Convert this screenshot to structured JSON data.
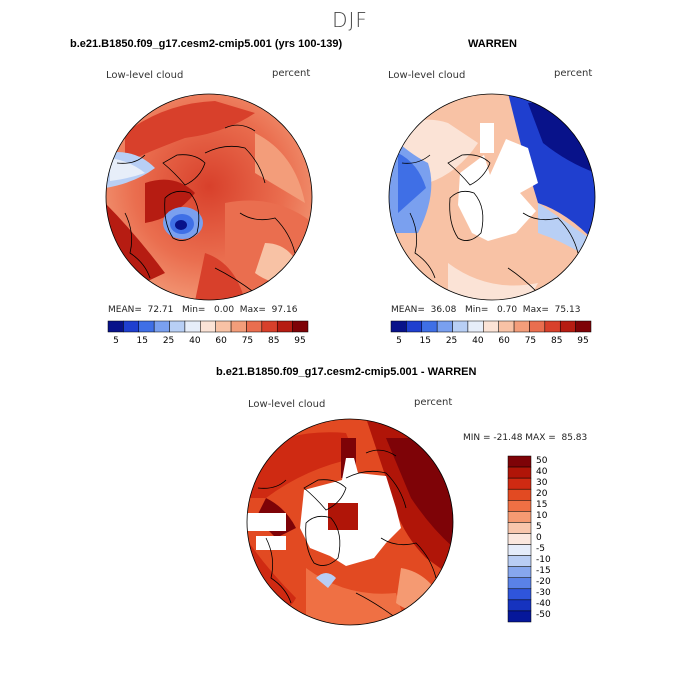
{
  "page_title": "DJF",
  "panel_left": {
    "case_title": "b.e21.B1850.f09_g17.cesm2-cmip5.001 (yrs 100-139)",
    "variable": "Low-level cloud",
    "units": "percent",
    "stats": "MEAN=  72.71   Min=   0.00  Max=  97.16"
  },
  "panel_right": {
    "case_title": "WARREN",
    "variable": "Low-level cloud",
    "units": "percent",
    "stats": "MEAN=  36.08   Min=   0.70  Max=  75.13"
  },
  "panel_diff": {
    "case_title": "b.e21.B1850.f09_g17.cesm2-cmip5.001 - WARREN",
    "variable": "Low-level cloud",
    "units": "percent",
    "minmax": "MIN = -21.48 MAX =  85.83"
  },
  "colorbar_abs": {
    "colors": [
      "#08128a",
      "#1f3fcf",
      "#3f6fe6",
      "#7aa0ef",
      "#b8cff5",
      "#e7eef9",
      "#fbe3d6",
      "#f8c2a5",
      "#f39d7a",
      "#ea6e4f",
      "#d8402b",
      "#b61c12",
      "#7e0307"
    ],
    "labels": [
      "5",
      "15",
      "25",
      "40",
      "60",
      "75",
      "85",
      "95"
    ]
  },
  "colorbar_diff": {
    "colors": [
      "#7e0307",
      "#b01508",
      "#cf2a12",
      "#e24a22",
      "#ef7044",
      "#f59a72",
      "#f8c6ac",
      "#fbe7de",
      "#e5ecfa",
      "#b9cdf4",
      "#87a7ee",
      "#5a82e8",
      "#2f55db",
      "#1633bf",
      "#05179a"
    ],
    "labels": [
      "50",
      "40",
      "30",
      "20",
      "15",
      "10",
      "5",
      "0",
      "-5",
      "-10",
      "-15",
      "-20",
      "-30",
      "-40",
      "-50"
    ]
  }
}
